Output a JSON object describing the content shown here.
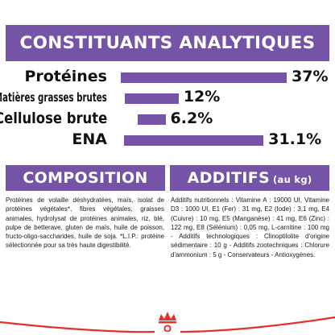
{
  "header": {
    "title": "CONSTITUANTS ANALYTIQUES"
  },
  "nutrients": [
    {
      "name": "Protéines",
      "value_text": "37%",
      "value": 37
    },
    {
      "name": "Matières grasses brutes",
      "value_text": "12%",
      "value": 12
    },
    {
      "name": "Cellulose brute",
      "value_text": "6.2%",
      "value": 6.2
    },
    {
      "name": "ENA",
      "value_text": "31.1%",
      "value": 31.1
    }
  ],
  "composition": {
    "title": "COMPOSITION",
    "text": "Protéines de volaille déshydratées, maïs, isolat de protéines végétales*, fibres végétales, graisses animales, hydrolysat de protéines animales, riz, blé, pulpe de betterave, gluten de maïs, huile de poisson, fructo-oligo-saccharides, huile de soja. *L.I.P.: protéine sélectionnée pour sa très haute digestibilité."
  },
  "additifs": {
    "title": "ADDITIFS",
    "subtitle": "(au kg)",
    "text": "Additifs nutritionnels : Vitamine A : 19000 UI, Vitamine D3 : 1000 UI, E1 (Fer) : 31 mg, E2 (Iode) : 3,1 mg, E4 (Cuivre) : 10 mg, E5 (Manganèse) : 41 mg, E6 (Zinc) : 122 mg, E8 (Sélénium) : 0,05 mg, L-carnitine : 100 mg - Additifs technologiques : Clinoptilolite d'origine sédimentaire : 10 g - Additifs zootechniques : Chlorure d'ammonium : 5 g - Conservateurs - Antioxygènes."
  },
  "colors": {
    "accent": "#7553a6",
    "brand_red": "#e4312b"
  },
  "logo": {
    "icon": "royal-canin-crown-icon"
  }
}
